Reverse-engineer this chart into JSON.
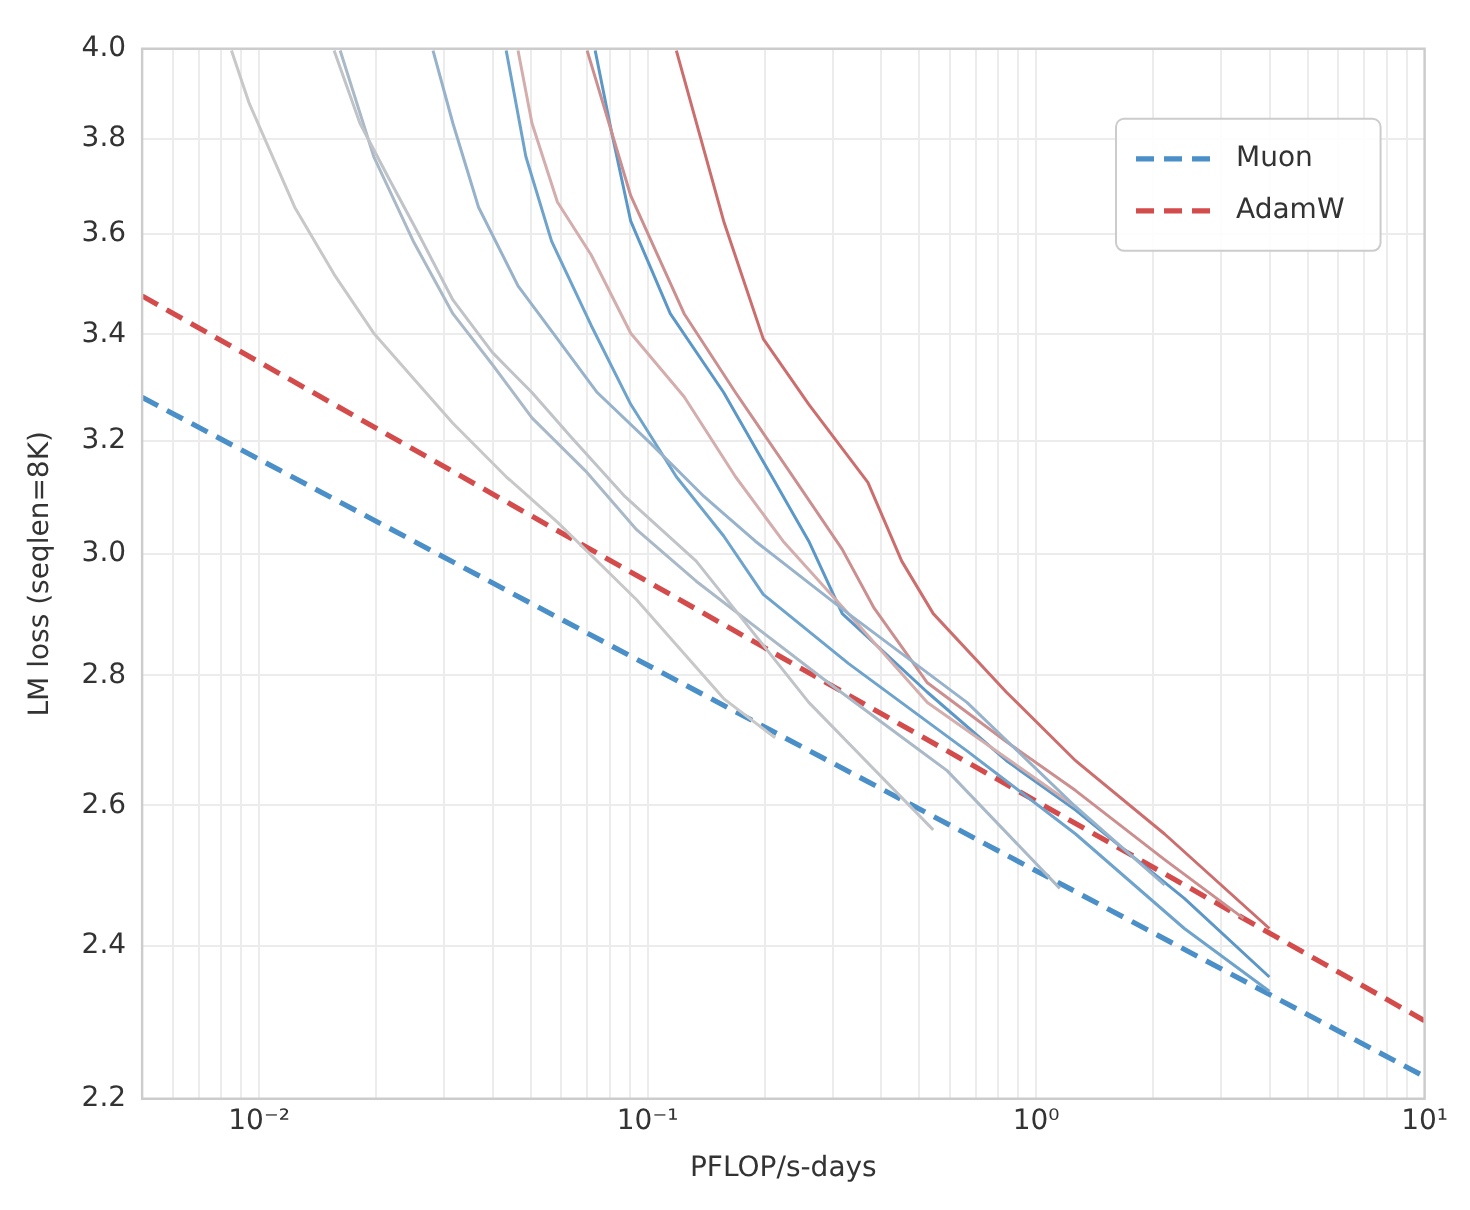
{
  "chart_data": {
    "type": "line",
    "xlabel": "PFLOP/s-days",
    "ylabel": "LM loss (seqlen=8K)",
    "log": "xy",
    "grid": true,
    "legend": "top right",
    "marker": "none",
    "xlim": [
      0.005,
      10
    ],
    "ylim": [
      2.2,
      4.0
    ],
    "xticks": [
      {
        "value": 0.005,
        "label": null
      },
      {
        "value": 0.006,
        "label": null
      },
      {
        "value": 0.007,
        "label": null
      },
      {
        "value": 0.008,
        "label": null
      },
      {
        "value": 0.009,
        "label": null
      },
      {
        "value": 0.01,
        "label": "10⁻²"
      },
      {
        "value": 0.02,
        "label": null
      },
      {
        "value": 0.03,
        "label": null
      },
      {
        "value": 0.04,
        "label": null
      },
      {
        "value": 0.05,
        "label": null
      },
      {
        "value": 0.06,
        "label": null
      },
      {
        "value": 0.07,
        "label": null
      },
      {
        "value": 0.08,
        "label": null
      },
      {
        "value": 0.09,
        "label": null
      },
      {
        "value": 0.1,
        "label": "10⁻¹"
      },
      {
        "value": 0.2,
        "label": null
      },
      {
        "value": 0.3,
        "label": null
      },
      {
        "value": 0.4,
        "label": null
      },
      {
        "value": 0.5,
        "label": null
      },
      {
        "value": 0.6,
        "label": null
      },
      {
        "value": 0.7,
        "label": null
      },
      {
        "value": 0.8,
        "label": null
      },
      {
        "value": 0.9,
        "label": null
      },
      {
        "value": 1,
        "label": "10⁰"
      },
      {
        "value": 2,
        "label": null
      },
      {
        "value": 3,
        "label": null
      },
      {
        "value": 4,
        "label": null
      },
      {
        "value": 5,
        "label": null
      },
      {
        "value": 6,
        "label": null
      },
      {
        "value": 7,
        "label": null
      },
      {
        "value": 8,
        "label": null
      },
      {
        "value": 9,
        "label": null
      },
      {
        "value": 10,
        "label": "10¹"
      }
    ],
    "yticks": [
      2.2,
      2.4,
      2.6,
      2.8,
      {
        "value": 3,
        "label": "3.0"
      },
      3.2,
      3.4,
      3.6,
      3.8,
      {
        "value": 4,
        "label": "4.0"
      }
    ],
    "series": [
      {
        "color": "#c8c8c8",
        "x": [
          0.00849,
          0.00944,
          0.01235,
          0.0156,
          0.01973,
          0.02494,
          0.03154,
          0.04326,
          0.0586,
          0.0937,
          0.157,
          0.213
        ],
        "values": [
          3.996,
          3.877,
          3.655,
          3.518,
          3.402,
          3.316,
          3.232,
          3.135,
          3.055,
          2.923,
          2.763,
          2.702
        ]
      },
      {
        "color": "#c0c3c7",
        "x": [
          0.0156,
          0.01818,
          0.02143,
          0.02584,
          0.03154,
          0.03985,
          0.0504,
          0.0637,
          0.0874,
          0.1334,
          0.26,
          0.5436
        ],
        "values": [
          3.996,
          3.834,
          3.72,
          3.597,
          3.467,
          3.365,
          3.289,
          3.206,
          3.1,
          2.988,
          2.757,
          2.564
        ]
      },
      {
        "color": "#aab9c7",
        "x": [
          0.01617,
          0.01973,
          0.02494,
          0.03154,
          0.03985,
          0.0504,
          0.0691,
          0.0937,
          0.1334,
          0.292,
          0.59,
          1.151
        ],
        "values": [
          3.996,
          3.762,
          3.585,
          3.44,
          3.342,
          3.242,
          3.146,
          3.042,
          2.954,
          2.788,
          2.652,
          2.48
        ]
      },
      {
        "color": "#97b2cb",
        "x": [
          0.02804,
          0.03154,
          0.03672,
          0.0464,
          0.0586,
          0.0742,
          0.1018,
          0.1397,
          0.1894,
          0.3286,
          0.6637,
          1.264,
          2.142
        ],
        "values": [
          3.996,
          3.834,
          3.655,
          3.495,
          3.391,
          3.289,
          3.195,
          3.1,
          3.022,
          2.9,
          2.757,
          2.598,
          2.485
        ]
      },
      {
        "color": "#6ea3cc",
        "x": [
          0.04326,
          0.0486,
          0.0566,
          0.0716,
          0.0905,
          0.1186,
          0.157,
          0.1985,
          0.3286,
          0.6637,
          1.264,
          2.408,
          3.986
        ],
        "values": [
          3.996,
          3.762,
          3.585,
          3.417,
          3.267,
          3.135,
          3.031,
          2.932,
          2.819,
          2.682,
          2.558,
          2.424,
          2.339
        ]
      },
      {
        "color": "#d4adad",
        "x": [
          0.0464,
          0.0504,
          0.0586,
          0.0716,
          0.0905,
          0.1242,
          0.1684,
          0.2233,
          0.3286,
          0.525,
          1.264
        ],
        "values": [
          3.996,
          3.834,
          3.666,
          3.557,
          3.402,
          3.281,
          3.135,
          3.022,
          2.9,
          2.757,
          2.598
        ]
      },
      {
        "color": "#cc8f8f",
        "x": [
          0.0699,
          0.0905,
          0.1242,
          0.1684,
          0.231,
          0.317,
          0.383,
          0.525,
          0.839,
          1.264,
          2.142,
          3.42
        ],
        "values": [
          3.996,
          3.679,
          3.44,
          3.289,
          3.146,
          3.008,
          2.909,
          2.788,
          2.696,
          2.622,
          2.521,
          2.438
        ]
      },
      {
        "color": "#5b97c7",
        "x": [
          0.0733,
          0.0805,
          0.0905,
          0.1144,
          0.157,
          0.213,
          0.26,
          0.317,
          0.525,
          0.839,
          1.264,
          2.408,
          3.986
        ],
        "values": [
          3.996,
          3.821,
          3.626,
          3.44,
          3.289,
          3.125,
          3.022,
          2.9,
          2.773,
          2.667,
          2.593,
          2.466,
          2.358
        ]
      },
      {
        "color": "#cd6e6e",
        "x": [
          0.1186,
          0.157,
          0.1985,
          0.26,
          0.369,
          0.451,
          0.5436,
          0.839,
          1.264,
          2.142,
          3.986
        ],
        "values": [
          3.996,
          3.626,
          3.391,
          3.267,
          3.125,
          2.988,
          2.9,
          2.773,
          2.667,
          2.558,
          2.424
        ]
      },
      {
        "name": "Muon",
        "color": "#4a8fc7",
        "line_style": "dashed",
        "x": [
          0.005,
          10
        ],
        "values": [
          3.28,
          2.228
        ]
      },
      {
        "name": "AdamW",
        "color": "#d44b4b",
        "line_style": "dashed",
        "x": [
          0.005,
          10
        ],
        "values": [
          3.475,
          2.3
        ]
      }
    ]
  }
}
